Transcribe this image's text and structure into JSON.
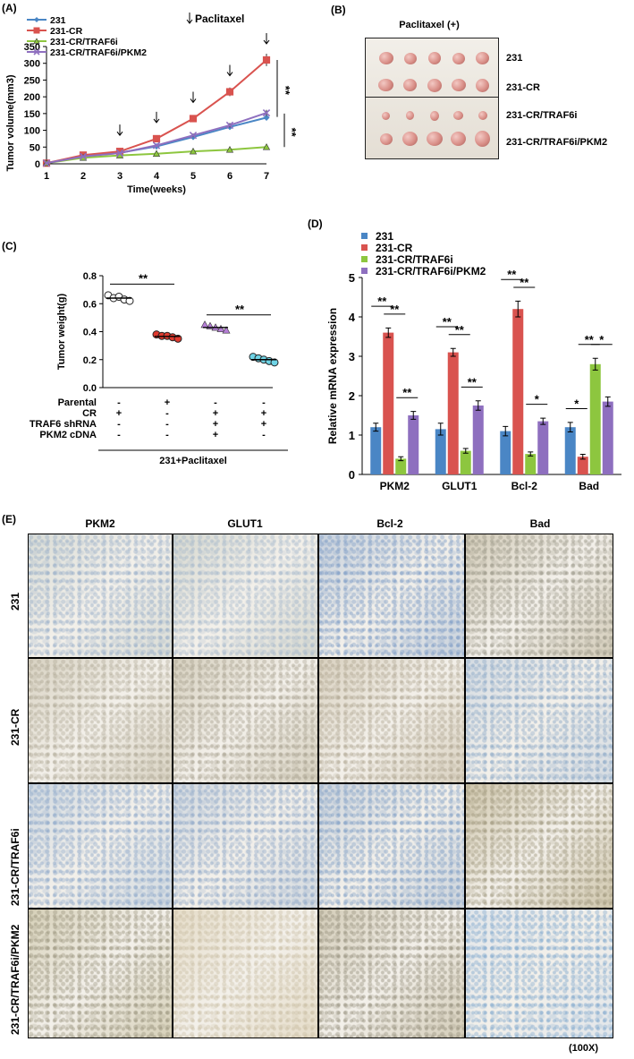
{
  "panels": {
    "A": "(A)",
    "B": "(B)",
    "C": "(C)",
    "D": "(D)",
    "E": "(E)"
  },
  "chart_data": [
    {
      "panel": "A",
      "type": "line",
      "xlabel": "Time(weeks)",
      "ylabel": "Tumor volume(mm3)",
      "x": [
        1,
        2,
        3,
        4,
        5,
        6,
        7
      ],
      "ylim": [
        0,
        350
      ],
      "yticks": [
        0,
        50,
        100,
        150,
        200,
        250,
        300,
        350
      ],
      "series": [
        {
          "name": "231",
          "color": "#4a86c5",
          "marker": "diamond",
          "values": [
            2,
            24,
            33,
            52,
            80,
            110,
            138
          ]
        },
        {
          "name": "231-CR",
          "color": "#d9534f",
          "marker": "square",
          "values": [
            2,
            26,
            37,
            75,
            135,
            215,
            310
          ]
        },
        {
          "name": "231-CR/TRAF6i",
          "color": "#8dc63f",
          "marker": "triangle",
          "values": [
            2,
            18,
            25,
            30,
            37,
            42,
            50
          ]
        },
        {
          "name": "231-CR/TRAF6i/PKM2",
          "color": "#8e6fbf",
          "marker": "x",
          "values": [
            2,
            22,
            32,
            55,
            85,
            115,
            152
          ]
        }
      ],
      "annotation": "Paclitaxel",
      "significance": [
        "**",
        "**"
      ]
    },
    {
      "panel": "C",
      "type": "scatter",
      "ylabel": "Tumor weight(g)",
      "ylim": [
        0.0,
        0.8
      ],
      "yticks": [
        0.0,
        0.2,
        0.4,
        0.6,
        0.8
      ],
      "groups": [
        {
          "color": "#ffffff",
          "marker": "circle",
          "values": [
            0.66,
            0.64,
            0.65,
            0.63,
            0.62
          ]
        },
        {
          "color": "#e03a2f",
          "marker": "circle",
          "values": [
            0.38,
            0.37,
            0.37,
            0.36,
            0.35
          ]
        },
        {
          "color": "#b57fd6",
          "marker": "triangle",
          "values": [
            0.45,
            0.44,
            0.43,
            0.42,
            0.41
          ]
        },
        {
          "color": "#6fd4e6",
          "marker": "circle",
          "values": [
            0.22,
            0.21,
            0.2,
            0.19,
            0.18
          ]
        }
      ],
      "conditions": [
        {
          "label": "Parental",
          "values": [
            "-",
            "+",
            "-",
            "-"
          ]
        },
        {
          "label": "CR",
          "values": [
            "+",
            "-",
            "+",
            "+"
          ]
        },
        {
          "label": "TRAF6 shRNA",
          "values": [
            "-",
            "-",
            "+",
            "+"
          ]
        },
        {
          "label": "PKM2 cDNA",
          "values": [
            "-",
            "-",
            "+",
            "-"
          ]
        }
      ],
      "footer": "231+Paclitaxel",
      "significance": [
        "**",
        "**"
      ]
    },
    {
      "panel": "D",
      "type": "bar",
      "ylabel": "Relative mRNA expression",
      "ylim": [
        0,
        5
      ],
      "yticks": [
        0,
        1,
        2,
        3,
        4,
        5
      ],
      "categories": [
        "PKM2",
        "GLUT1",
        "Bcl-2",
        "Bad"
      ],
      "series": [
        {
          "name": "231",
          "color": "#4a86c5",
          "values": [
            1.2,
            1.15,
            1.1,
            1.2
          ],
          "err": [
            0.1,
            0.15,
            0.12,
            0.12
          ]
        },
        {
          "name": "231-CR",
          "color": "#d9534f",
          "values": [
            3.6,
            3.1,
            4.2,
            0.45
          ],
          "err": [
            0.12,
            0.1,
            0.2,
            0.06
          ]
        },
        {
          "name": "231-CR/TRAF6i",
          "color": "#8dc63f",
          "values": [
            0.4,
            0.6,
            0.52,
            2.8
          ],
          "err": [
            0.05,
            0.06,
            0.05,
            0.15
          ]
        },
        {
          "name": "231-CR/TRAF6i/PKM2",
          "color": "#8e6fbf",
          "values": [
            1.5,
            1.75,
            1.35,
            1.85
          ],
          "err": [
            0.1,
            0.12,
            0.08,
            0.12
          ]
        }
      ],
      "significance": [
        [
          "**",
          "**",
          "**"
        ],
        [
          "**",
          "**",
          "**"
        ],
        [
          "**",
          "**",
          "*"
        ],
        [
          "*",
          "**",
          "*"
        ]
      ]
    }
  ],
  "panelB": {
    "title": "Paclitaxel (+)",
    "rows": [
      "231",
      "231-CR",
      "231-CR/TRAF6i",
      "231-CR/TRAF6i/PKM2"
    ]
  },
  "panelE": {
    "columns": [
      "PKM2",
      "GLUT1",
      "Bcl-2",
      "Bad"
    ],
    "rows": [
      "231",
      "231-CR",
      "231-CR/TRAF6i",
      "231-CR/TRAF6i/PKM2"
    ],
    "magnification": "(100X)"
  }
}
